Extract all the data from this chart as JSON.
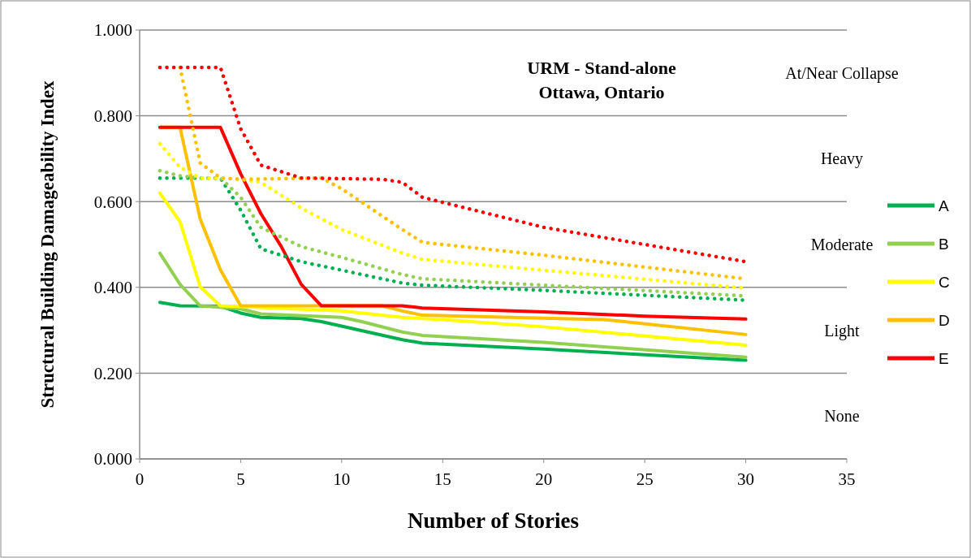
{
  "chart_data": {
    "type": "line",
    "title": "URM - Stand-alone",
    "subtitle": "Ottawa, Ontario",
    "xlabel": "Number of Stories",
    "ylabel": "Structural Building Damageability Index",
    "xlim": [
      0,
      35
    ],
    "xticks": [
      0,
      5,
      10,
      15,
      20,
      25,
      30,
      35
    ],
    "ylim": [
      0,
      1
    ],
    "yticks": [
      {
        "value": 0,
        "label": "0.000"
      },
      {
        "value": 0.2,
        "label": "0.200"
      },
      {
        "value": 0.4,
        "label": "0.400"
      },
      {
        "value": 0.6,
        "label": "0.600"
      },
      {
        "value": 0.8,
        "label": "0.800"
      },
      {
        "value": 1,
        "label": "1.000"
      }
    ],
    "grid": "y",
    "legend": "right",
    "marker": "none",
    "annotations": [
      "At/Near Collapse",
      "Heavy",
      "Moderate",
      "Light",
      "None"
    ],
    "series": [
      {
        "name": "A",
        "color": "#00b050",
        "line_style": "solid",
        "x": [
          1,
          2,
          4,
          5,
          6,
          8,
          9,
          13,
          14,
          20,
          30
        ],
        "values": [
          0.365,
          0.357,
          0.356,
          0.34,
          0.33,
          0.327,
          0.32,
          0.278,
          0.27,
          0.256,
          0.23
        ]
      },
      {
        "name": "B",
        "color": "#92d050",
        "line_style": "solid",
        "x": [
          1,
          2,
          3,
          5,
          6,
          10,
          11,
          13,
          14,
          20,
          30
        ],
        "values": [
          0.48,
          0.407,
          0.357,
          0.35,
          0.338,
          0.33,
          0.32,
          0.296,
          0.288,
          0.272,
          0.237
        ]
      },
      {
        "name": "C",
        "color": "#ffff00",
        "line_style": "solid",
        "x": [
          1,
          2,
          3,
          4,
          5,
          10,
          13,
          15,
          20,
          30
        ],
        "values": [
          0.62,
          0.553,
          0.401,
          0.357,
          0.355,
          0.345,
          0.33,
          0.325,
          0.308,
          0.265
        ]
      },
      {
        "name": "D",
        "color": "#ffc000",
        "line_style": "solid",
        "x": [
          1,
          2,
          3,
          4,
          5,
          12,
          13,
          14,
          20,
          23,
          30
        ],
        "values": [
          0.773,
          0.773,
          0.559,
          0.441,
          0.357,
          0.357,
          0.345,
          0.335,
          0.328,
          0.325,
          0.29
        ]
      },
      {
        "name": "E",
        "color": "#ff0000",
        "line_style": "solid",
        "x": [
          1,
          2,
          3,
          4,
          5,
          6,
          7,
          8,
          9,
          13,
          14,
          20,
          25,
          30
        ],
        "values": [
          0.773,
          0.773,
          0.773,
          0.773,
          0.665,
          0.572,
          0.496,
          0.407,
          0.357,
          0.357,
          0.352,
          0.343,
          0.333,
          0.326
        ]
      },
      {
        "color": "#00b050",
        "line_style": "dotted",
        "x": [
          1,
          4,
          5,
          6,
          8,
          10,
          13,
          14,
          20,
          30
        ],
        "values": [
          0.655,
          0.655,
          0.58,
          0.49,
          0.46,
          0.44,
          0.41,
          0.405,
          0.393,
          0.37
        ]
      },
      {
        "color": "#92d050",
        "line_style": "dotted",
        "x": [
          1,
          2,
          3,
          4,
          5,
          6,
          8,
          10,
          13,
          14,
          20,
          30
        ],
        "values": [
          0.672,
          0.66,
          0.655,
          0.655,
          0.61,
          0.54,
          0.495,
          0.47,
          0.43,
          0.42,
          0.405,
          0.38
        ]
      },
      {
        "color": "#ffff00",
        "line_style": "dotted",
        "x": [
          1,
          2,
          3,
          4,
          5,
          6,
          8,
          10,
          13,
          14,
          20,
          30
        ],
        "values": [
          0.735,
          0.68,
          0.655,
          0.655,
          0.652,
          0.645,
          0.585,
          0.535,
          0.48,
          0.465,
          0.44,
          0.398
        ]
      },
      {
        "color": "#ffc000",
        "line_style": "dotted",
        "x": [
          2,
          3,
          4,
          5,
          9,
          10,
          13,
          14,
          20,
          30
        ],
        "values": [
          0.913,
          0.69,
          0.655,
          0.652,
          0.655,
          0.63,
          0.535,
          0.505,
          0.475,
          0.42
        ]
      },
      {
        "color": "#ff0000",
        "line_style": "dotted",
        "x": [
          1,
          2,
          3,
          4,
          5,
          6,
          8,
          12,
          13,
          14,
          20,
          30
        ],
        "values": [
          0.913,
          0.913,
          0.913,
          0.913,
          0.77,
          0.685,
          0.655,
          0.652,
          0.645,
          0.61,
          0.54,
          0.46
        ]
      }
    ]
  }
}
